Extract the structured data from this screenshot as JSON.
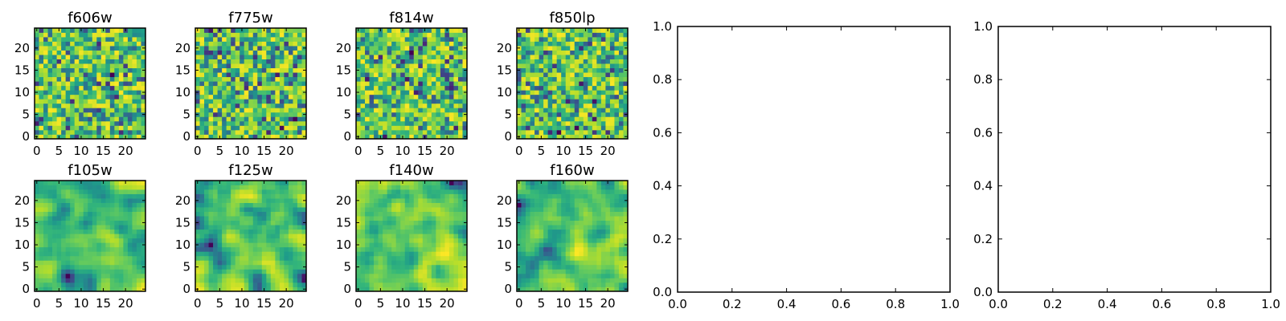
{
  "chart_data": [
    {
      "type": "heatmap",
      "title": "f606w",
      "xticks": [
        "0",
        "5",
        "10",
        "15",
        "20"
      ],
      "yticks": [
        "0",
        "5",
        "10",
        "15",
        "20"
      ],
      "xlim": [
        -0.5,
        24.5
      ],
      "ylim": [
        -0.5,
        24.5
      ],
      "grid_size": 25,
      "grid": false,
      "colormap": "viridis",
      "pattern": "pixel-scale noise"
    },
    {
      "type": "heatmap",
      "title": "f775w",
      "xticks": [
        "0",
        "5",
        "10",
        "15",
        "20"
      ],
      "yticks": [
        "0",
        "5",
        "10",
        "15",
        "20"
      ],
      "xlim": [
        -0.5,
        24.5
      ],
      "ylim": [
        -0.5,
        24.5
      ],
      "grid_size": 25,
      "grid": false,
      "colormap": "viridis",
      "pattern": "pixel-scale noise"
    },
    {
      "type": "heatmap",
      "title": "f814w",
      "xticks": [
        "0",
        "5",
        "10",
        "15",
        "20"
      ],
      "yticks": [
        "0",
        "5",
        "10",
        "15",
        "20"
      ],
      "xlim": [
        -0.5,
        24.5
      ],
      "ylim": [
        -0.5,
        24.5
      ],
      "grid_size": 25,
      "grid": false,
      "colormap": "viridis",
      "pattern": "pixel-scale noise"
    },
    {
      "type": "heatmap",
      "title": "f850lp",
      "xticks": [
        "0",
        "5",
        "10",
        "15",
        "20"
      ],
      "yticks": [
        "0",
        "5",
        "10",
        "15",
        "20"
      ],
      "xlim": [
        -0.5,
        24.5
      ],
      "ylim": [
        -0.5,
        24.5
      ],
      "grid_size": 25,
      "grid": false,
      "colormap": "viridis",
      "pattern": "pixel-scale noise"
    },
    {
      "type": "heatmap",
      "title": "f105w",
      "xticks": [
        "0",
        "5",
        "10",
        "15",
        "20"
      ],
      "yticks": [
        "0",
        "5",
        "10",
        "15",
        "20"
      ],
      "xlim": [
        -0.5,
        24.5
      ],
      "ylim": [
        -0.5,
        24.5
      ],
      "grid_size": 25,
      "grid": false,
      "colormap": "viridis",
      "pattern": "smooth correlated noise"
    },
    {
      "type": "heatmap",
      "title": "f125w",
      "xticks": [
        "0",
        "5",
        "10",
        "15",
        "20"
      ],
      "yticks": [
        "0",
        "5",
        "10",
        "15",
        "20"
      ],
      "xlim": [
        -0.5,
        24.5
      ],
      "ylim": [
        -0.5,
        24.5
      ],
      "grid_size": 25,
      "grid": false,
      "colormap": "viridis",
      "pattern": "smooth correlated noise"
    },
    {
      "type": "heatmap",
      "title": "f140w",
      "xticks": [
        "0",
        "5",
        "10",
        "15",
        "20"
      ],
      "yticks": [
        "0",
        "5",
        "10",
        "15",
        "20"
      ],
      "xlim": [
        -0.5,
        24.5
      ],
      "ylim": [
        -0.5,
        24.5
      ],
      "grid_size": 25,
      "grid": false,
      "colormap": "viridis",
      "pattern": "smooth correlated noise"
    },
    {
      "type": "heatmap",
      "title": "f160w",
      "xticks": [
        "0",
        "5",
        "10",
        "15",
        "20"
      ],
      "yticks": [
        "0",
        "5",
        "10",
        "15",
        "20"
      ],
      "xlim": [
        -0.5,
        24.5
      ],
      "ylim": [
        -0.5,
        24.5
      ],
      "grid_size": 25,
      "grid": false,
      "colormap": "viridis",
      "pattern": "smooth correlated noise"
    },
    {
      "type": "scatter",
      "title": "",
      "xlim": [
        0.0,
        1.0
      ],
      "ylim": [
        0.0,
        1.0
      ],
      "xticks": [
        "0.0",
        "0.2",
        "0.4",
        "0.6",
        "0.8",
        "1.0"
      ],
      "yticks": [
        "0.0",
        "0.2",
        "0.4",
        "0.6",
        "0.8",
        "1.0"
      ],
      "series": [],
      "grid": false
    },
    {
      "type": "scatter",
      "title": "",
      "xlim": [
        0.0,
        1.0
      ],
      "ylim": [
        0.0,
        1.0
      ],
      "xticks": [
        "0.0",
        "0.2",
        "0.4",
        "0.6",
        "0.8",
        "1.0"
      ],
      "yticks": [
        "0.0",
        "0.2",
        "0.4",
        "0.6",
        "0.8",
        "1.0"
      ],
      "series": [],
      "grid": false
    }
  ],
  "colors": {
    "viridis": [
      "#440154",
      "#482878",
      "#3e4989",
      "#31688e",
      "#26828e",
      "#1f9e89",
      "#35b779",
      "#6ece58",
      "#b5de2b",
      "#fde725"
    ],
    "axis": "#000000",
    "background": "#ffffff"
  }
}
